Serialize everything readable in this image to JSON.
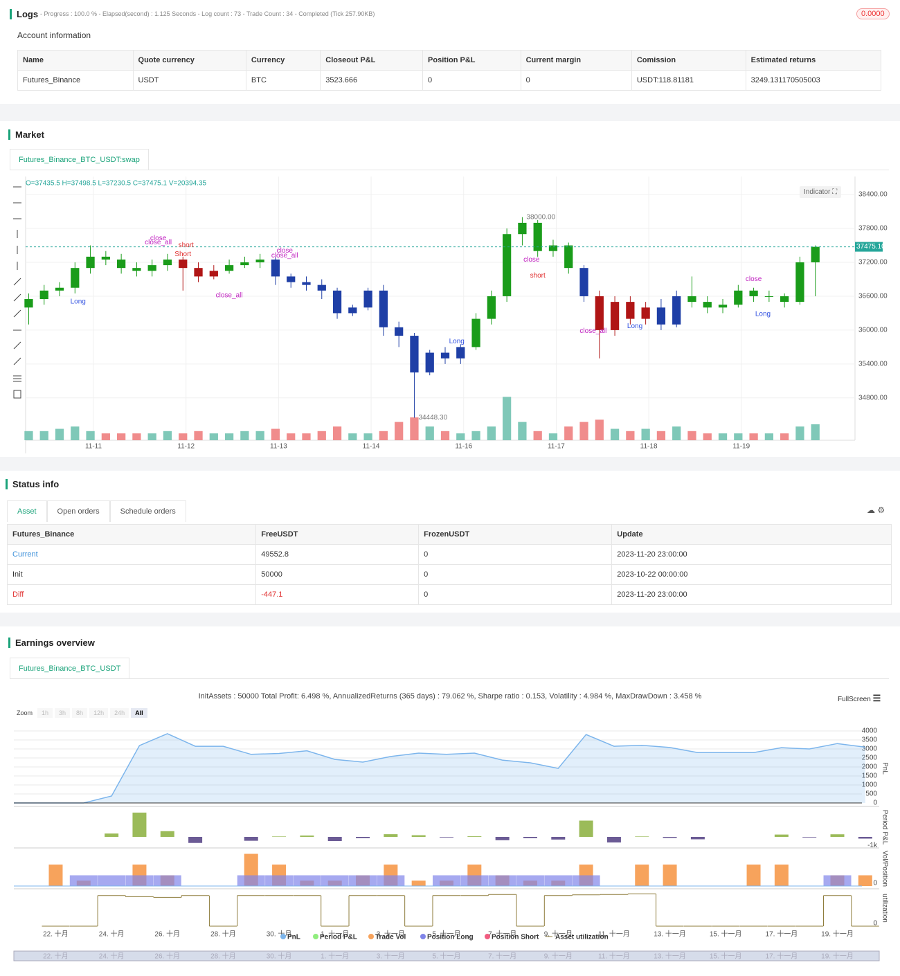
{
  "logs": {
    "title": "Logs",
    "summary": "- Progress : 100.0 % - Elapsed(second) : 1.125  Seconds - Log count : 73 - Trade Count : 34 - Completed (Tick 257.90KB)",
    "badge": "0.0000"
  },
  "account": {
    "title": "Account information",
    "columns": [
      "Name",
      "Quote currency",
      "Currency",
      "Closeout P&L",
      "Position P&L",
      "Current margin",
      "Comission",
      "Estimated returns"
    ],
    "rows": [
      [
        "Futures_Binance",
        "USDT",
        "BTC",
        "3523.666",
        "0",
        "0",
        "USDT:118.81181",
        "3249.131170505003"
      ]
    ]
  },
  "market": {
    "title": "Market",
    "tab": "Futures_Binance_BTC_USDT:swap",
    "indicator": "Indicator",
    "chart": {
      "type": "candlestick",
      "ohlc_text": "O=37435.5 H=37498.5 L=37230.5 C=37475.1 V=20394.35",
      "open": [
        36400,
        36550,
        36700,
        36750,
        37100,
        37300,
        37250,
        37100,
        37050,
        37150,
        37250,
        37100,
        36950,
        37050,
        37150,
        37200,
        37250,
        36950,
        36850,
        36800,
        36700,
        36300,
        36400,
        36700,
        36050,
        35900,
        35250,
        35600,
        35500,
        35700,
        36200,
        36600,
        37700,
        37900,
        37400,
        37500,
        37100,
        36600,
        36000,
        36500,
        36200,
        36400,
        36100,
        36600,
        36500,
        36400,
        36450,
        36700,
        36600,
        36600,
        36500,
        37200
      ],
      "high": [
        36650,
        36800,
        36850,
        37200,
        37500,
        37400,
        37350,
        37200,
        37250,
        37350,
        37300,
        37200,
        37150,
        37250,
        37300,
        37350,
        37300,
        37000,
        36950,
        36900,
        36750,
        36450,
        36750,
        36800,
        36150,
        35950,
        35650,
        35700,
        35750,
        36300,
        36700,
        37800,
        38000,
        37950,
        37600,
        37550,
        37150,
        36700,
        36600,
        36600,
        36500,
        36550,
        36700,
        36950,
        36600,
        36550,
        36800,
        36750,
        36700,
        36650,
        37300,
        37500
      ],
      "low": [
        36100,
        36450,
        36600,
        36650,
        37000,
        37150,
        37000,
        36950,
        36950,
        37050,
        36700,
        36850,
        36900,
        37000,
        37100,
        37100,
        36800,
        36750,
        36700,
        36550,
        36200,
        36250,
        36350,
        35900,
        35700,
        34448.3,
        35200,
        35400,
        35400,
        35650,
        36100,
        36500,
        37500,
        37300,
        37300,
        37000,
        36500,
        35500,
        35900,
        36100,
        36100,
        36000,
        36050,
        36400,
        36300,
        36300,
        36400,
        36500,
        36500,
        36400,
        36450,
        36600
      ],
      "close": [
        36550,
        36700,
        36750,
        37100,
        37300,
        37250,
        37100,
        37050,
        37150,
        37250,
        37100,
        36950,
        37050,
        37150,
        37200,
        37250,
        36950,
        36850,
        36800,
        36700,
        36300,
        36400,
        36700,
        36050,
        35900,
        35250,
        35600,
        35500,
        35700,
        36200,
        36600,
        37700,
        37900,
        37400,
        37500,
        37100,
        36600,
        36000,
        36500,
        36200,
        36400,
        36100,
        36600,
        36500,
        36400,
        36450,
        36700,
        36600,
        36600,
        36500,
        37200,
        37475.1
      ],
      "colors": [
        "#1a9c1a",
        "#1a9c1a",
        "#1a9c1a",
        "#1a9c1a",
        "#1a9c1a",
        "#1a9c1a",
        "#1a9c1a",
        "#1a9c1a",
        "#1a9c1a",
        "#1a9c1a",
        "#b01515",
        "#b01515",
        "#b01515",
        "#1a9c1a",
        "#1a9c1a",
        "#1a9c1a",
        "#1f3fa6",
        "#1f3fa6",
        "#1f3fa6",
        "#1f3fa6",
        "#1f3fa6",
        "#1f3fa6",
        "#1f3fa6",
        "#1f3fa6",
        "#1f3fa6",
        "#1f3fa6",
        "#1f3fa6",
        "#1f3fa6",
        "#1f3fa6",
        "#1a9c1a",
        "#1a9c1a",
        "#1a9c1a",
        "#1a9c1a",
        "#1a9c1a",
        "#1a9c1a",
        "#1a9c1a",
        "#1f3fa6",
        "#b01515",
        "#b01515",
        "#b01515",
        "#b01515",
        "#1f3fa6",
        "#1f3fa6",
        "#1a9c1a",
        "#1a9c1a",
        "#1a9c1a",
        "#1a9c1a",
        "#1a9c1a",
        "#1a9c1a",
        "#1a9c1a",
        "#1a9c1a",
        "#1a9c1a"
      ],
      "volume": [
        2,
        2,
        2.5,
        3,
        2,
        1.5,
        1.5,
        1.5,
        1.5,
        2,
        1.5,
        2,
        1.5,
        1.5,
        2,
        2,
        2.5,
        1.5,
        1.5,
        2,
        3,
        1.5,
        1.5,
        2,
        4,
        5,
        3,
        2,
        1.5,
        2,
        3,
        9.5,
        4,
        2,
        1.5,
        3,
        4,
        4.5,
        2.5,
        2,
        2.5,
        2,
        3,
        2,
        1.5,
        1.5,
        1.5,
        1.5,
        1.5,
        1.5,
        3,
        3.5
      ],
      "vol_ylim": [
        0,
        10
      ],
      "up_volume_color": "#7fc8b8",
      "down_volume_color": "#f08c8c",
      "ylim": [
        34050,
        38720
      ],
      "yticks": [
        {
          "value": 38400,
          "label": "38400.00"
        },
        {
          "value": 37800,
          "label": "37800.00"
        },
        {
          "value": 37200,
          "label": "37200.00"
        },
        {
          "value": 36600,
          "label": "36600.00"
        },
        {
          "value": 36000,
          "label": "36000.00"
        },
        {
          "value": 35400,
          "label": "35400.00"
        },
        {
          "value": 34800,
          "label": "34800.00"
        }
      ],
      "xlim": [
        -0.2,
        52
      ],
      "xticks": [
        {
          "value": 4.2,
          "label": "11-11"
        },
        {
          "value": 10.2,
          "label": "11-12"
        },
        {
          "value": 16.2,
          "label": "11-13"
        },
        {
          "value": 22.2,
          "label": "11-14"
        },
        {
          "value": 28.2,
          "label": "11-16"
        },
        {
          "value": 34.2,
          "label": "11-17"
        },
        {
          "value": 40.2,
          "label": "11-18"
        },
        {
          "value": 46.2,
          "label": "11-19"
        }
      ],
      "last_price": {
        "value": 37475.1,
        "label": "37475.10"
      },
      "high_note": {
        "x": 32,
        "value": 38000,
        "label": "38000.00"
      },
      "low_note": {
        "x": 25,
        "value": 34448.3,
        "label": "34448.30"
      },
      "annotations": [
        {
          "text": "Long",
          "x": 3.2,
          "y": 36503,
          "color": "#3050e0"
        },
        {
          "text": "close",
          "x": 8.4,
          "y": 37622,
          "color": "#c020c0"
        },
        {
          "text": "close_all",
          "x": 8.4,
          "y": 37549,
          "color": "#c020c0"
        },
        {
          "text": "short",
          "x": 10.2,
          "y": 37500,
          "color": "#e03030"
        },
        {
          "text": "Short",
          "x": 10,
          "y": 37342,
          "color": "#e03030"
        },
        {
          "text": "close_all",
          "x": 13,
          "y": 36612,
          "color": "#c020c0"
        },
        {
          "text": "close",
          "x": 16.6,
          "y": 37403,
          "color": "#c020c0"
        },
        {
          "text": "close_all",
          "x": 16.6,
          "y": 37318,
          "color": "#c020c0"
        },
        {
          "text": "Long",
          "x": 27.75,
          "y": 35798,
          "color": "#3050e0"
        },
        {
          "text": "close",
          "x": 32.6,
          "y": 37245,
          "color": "#c020c0"
        },
        {
          "text": "short",
          "x": 33,
          "y": 36965,
          "color": "#e03030"
        },
        {
          "text": "close_all",
          "x": 36.6,
          "y": 35980,
          "color": "#c020c0"
        },
        {
          "text": "Long",
          "x": 39.3,
          "y": 36065,
          "color": "#3050e0"
        },
        {
          "text": "close",
          "x": 47,
          "y": 36904,
          "color": "#c020c0"
        },
        {
          "text": "Long",
          "x": 47.6,
          "y": 36284,
          "color": "#3050e0"
        }
      ]
    }
  },
  "status": {
    "title": "Status info",
    "tabs": [
      "Asset",
      "Open orders",
      "Schedule orders"
    ],
    "columns": [
      "Futures_Binance",
      "FreeUSDT",
      "FrozenUSDT",
      "Update"
    ],
    "rows": [
      [
        "Current",
        "49552.8",
        "0",
        "2023-11-20 23:00:00"
      ],
      [
        "Init",
        "50000",
        "0",
        "2023-10-22 00:00:00"
      ],
      [
        "Diff",
        "-447.1",
        "0",
        "2023-11-20 23:00:00"
      ]
    ]
  },
  "earnings": {
    "title": "Earnings overview",
    "tab": "Futures_Binance_BTC_USDT",
    "summary": "InitAssets : 50000 Total Profit: 6.498 %, AnnualizedReturns (365 days) : 79.062 %, Sharpe ratio : 0.153, Volatility : 4.984 %, MaxDrawDown : 3.458 %",
    "fullscreen": "FullScreen",
    "zoom_label": "Zoom",
    "zoom_buttons": [
      "1h",
      "3h",
      "8h",
      "12h",
      "24h",
      "All"
    ],
    "chart": {
      "type": "multi-pane",
      "xlim": [
        -1.5,
        29.5
      ],
      "xticks": [
        {
          "value": 0,
          "label": "22. 十月"
        },
        {
          "value": 2,
          "label": "24. 十月"
        },
        {
          "value": 4,
          "label": "26. 十月"
        },
        {
          "value": 6,
          "label": "28. 十月"
        },
        {
          "value": 8,
          "label": "30. 十月"
        },
        {
          "value": 10,
          "label": "1. 十一月"
        },
        {
          "value": 12,
          "label": "3. 十一月"
        },
        {
          "value": 14,
          "label": "5. 十一月"
        },
        {
          "value": 16,
          "label": "7. 十一月"
        },
        {
          "value": 18,
          "label": "9. 十一月"
        },
        {
          "value": 20,
          "label": "11. 十一月"
        },
        {
          "value": 22,
          "label": "13. 十一月"
        },
        {
          "value": 24,
          "label": "15. 十一月"
        },
        {
          "value": 26,
          "label": "17. 十一月"
        },
        {
          "value": 28,
          "label": "19. 十一月"
        }
      ],
      "x": [
        0,
        1,
        2,
        3,
        4,
        5,
        6,
        7,
        8,
        9,
        10,
        11,
        12,
        13,
        14,
        15,
        16,
        17,
        18,
        19,
        20,
        21,
        22,
        23,
        24,
        25,
        26,
        27,
        28,
        29
      ],
      "pnl": {
        "name": "PnL",
        "axis_title": "PnL",
        "color": "#7cb5ec",
        "ylim": [
          0,
          4000
        ],
        "yticks": [
          0,
          500,
          1000,
          1500,
          2000,
          2500,
          3000,
          3500,
          4000
        ],
        "x": [
          -1.5,
          0,
          1,
          2,
          3,
          4,
          5,
          6,
          7,
          8,
          9,
          10,
          11,
          12,
          13,
          14,
          15,
          16,
          17,
          18,
          19,
          20,
          21,
          22,
          23,
          24,
          25,
          26,
          27,
          28,
          29
        ],
        "values": [
          0,
          0,
          0,
          385,
          3190,
          3850,
          3150,
          3150,
          2700,
          2750,
          2900,
          2420,
          2270,
          2580,
          2770,
          2700,
          2770,
          2380,
          2230,
          1920,
          3800,
          3150,
          3200,
          3080,
          2800,
          2800,
          2800,
          3070,
          3000,
          3300,
          3100
        ]
      },
      "period": {
        "name": "Period P&L",
        "axis_title": "Period P&L",
        "color": "#90ed7d",
        "positive_color": "#9bbb59",
        "negative_color": "#6b5b95",
        "ylim": [
          -1000,
          3000
        ],
        "yticks": [
          {
            "value": -1000,
            "label": "-1k"
          }
        ],
        "values": [
          null,
          0,
          385,
          2805,
          660,
          -700,
          0,
          -450,
          50,
          150,
          -480,
          -150,
          310,
          190,
          -70,
          70,
          -390,
          -150,
          -310,
          1880,
          -650,
          50,
          -120,
          -280,
          0,
          0,
          270,
          -70,
          300,
          -200
        ]
      },
      "volume": {
        "axis_title": "Vol/Position",
        "ylim": [
          0,
          3.5
        ],
        "yticks": [
          0
        ],
        "series": [
          {
            "name": "Trade Vol",
            "color": "#f7a35c",
            "values": [
              2,
              0.5,
              0,
              2,
              1,
              0,
              0,
              3,
              2,
              0.5,
              0.5,
              1,
              2,
              0.5,
              0.5,
              2,
              1,
              0.5,
              0.5,
              2,
              0,
              2,
              2,
              0,
              0,
              2,
              2,
              0,
              1,
              1
            ]
          },
          {
            "name": "Position Long",
            "color": "#8085e9",
            "values": [
              0,
              1,
              1,
              1,
              1,
              0,
              0,
              1,
              1,
              1,
              1,
              1,
              1,
              0,
              1,
              1,
              1,
              1,
              1,
              1,
              0,
              0,
              0,
              0,
              0,
              0,
              0,
              0,
              1,
              0
            ]
          },
          {
            "name": "Position Short",
            "color": "#f15c80"
          }
        ]
      },
      "utilization": {
        "name": "Asset utilization",
        "axis_title": "utilization",
        "color": "#8d7b3a",
        "ylim": [
          0,
          1
        ],
        "yticks": [
          0
        ],
        "values": [
          0,
          0,
          0.85,
          0.82,
          0.8,
          0.85,
          0,
          0.85,
          0.85,
          0.85,
          0,
          0.85,
          0.85,
          0,
          0.85,
          0.85,
          0.88,
          0,
          0.85,
          0.87,
          0.88,
          0.9,
          0,
          0,
          0,
          0,
          0,
          0,
          0.85,
          0
        ]
      }
    }
  }
}
